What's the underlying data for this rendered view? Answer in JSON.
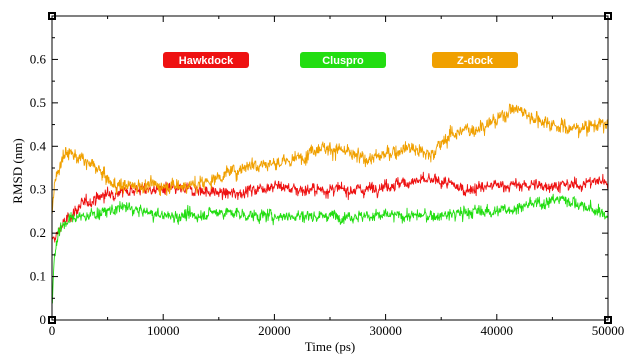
{
  "chart_data": {
    "type": "line",
    "title": "",
    "xlabel": "Time (ps)",
    "ylabel": "RMSD (nm)",
    "xlim": [
      0,
      50000
    ],
    "ylim": [
      0,
      0.7
    ],
    "x_ticks": [
      0,
      10000,
      20000,
      30000,
      40000,
      50000
    ],
    "x_tick_labels": [
      "0",
      "10000",
      "20000",
      "30000",
      "40000",
      "50000"
    ],
    "y_ticks": [
      0,
      0.1,
      0.2,
      0.3,
      0.4,
      0.5,
      0.6
    ],
    "y_tick_labels": [
      "0",
      "0.1",
      "0.2",
      "0.3",
      "0.4",
      "0.5",
      "0.6"
    ],
    "grid": false,
    "legend_position": "top",
    "series": [
      {
        "name": "Hawkdock",
        "color": "#ee1111",
        "noise": 0.014,
        "x": [
          0,
          300,
          1000,
          2000,
          3000,
          5000,
          7000,
          10000,
          13000,
          16000,
          18000,
          20000,
          22000,
          25000,
          28000,
          30000,
          33000,
          35000,
          37000,
          40000,
          43000,
          45000,
          47000,
          49000,
          50000
        ],
        "y": [
          0.18,
          0.19,
          0.22,
          0.25,
          0.27,
          0.29,
          0.3,
          0.3,
          0.3,
          0.29,
          0.3,
          0.31,
          0.3,
          0.3,
          0.3,
          0.31,
          0.32,
          0.32,
          0.3,
          0.31,
          0.31,
          0.31,
          0.31,
          0.32,
          0.32
        ]
      },
      {
        "name": "Cluspro",
        "color": "#22dd11",
        "noise": 0.014,
        "x": [
          0,
          200,
          600,
          1500,
          3000,
          5000,
          6500,
          8000,
          10000,
          13000,
          15000,
          18000,
          20000,
          22000,
          25000,
          28000,
          30000,
          33000,
          35000,
          38000,
          40000,
          42000,
          44000,
          46000,
          48000,
          50000
        ],
        "y": [
          0.03,
          0.14,
          0.21,
          0.23,
          0.24,
          0.25,
          0.26,
          0.25,
          0.24,
          0.24,
          0.25,
          0.24,
          0.24,
          0.24,
          0.24,
          0.24,
          0.24,
          0.24,
          0.24,
          0.25,
          0.25,
          0.26,
          0.27,
          0.28,
          0.26,
          0.24
        ]
      },
      {
        "name": "Z-dock",
        "color": "#f0a000",
        "noise": 0.017,
        "x": [
          0,
          300,
          800,
          1500,
          2500,
          4000,
          5500,
          7000,
          10000,
          13000,
          16000,
          18000,
          20000,
          22000,
          24000,
          26000,
          28000,
          30000,
          32000,
          34000,
          36000,
          38000,
          40000,
          41500,
          43000,
          45000,
          47000,
          49000,
          50000
        ],
        "y": [
          0.25,
          0.32,
          0.37,
          0.39,
          0.37,
          0.35,
          0.31,
          0.31,
          0.31,
          0.31,
          0.34,
          0.36,
          0.36,
          0.37,
          0.4,
          0.39,
          0.37,
          0.38,
          0.4,
          0.38,
          0.43,
          0.44,
          0.46,
          0.49,
          0.47,
          0.45,
          0.44,
          0.45,
          0.45
        ]
      }
    ]
  }
}
